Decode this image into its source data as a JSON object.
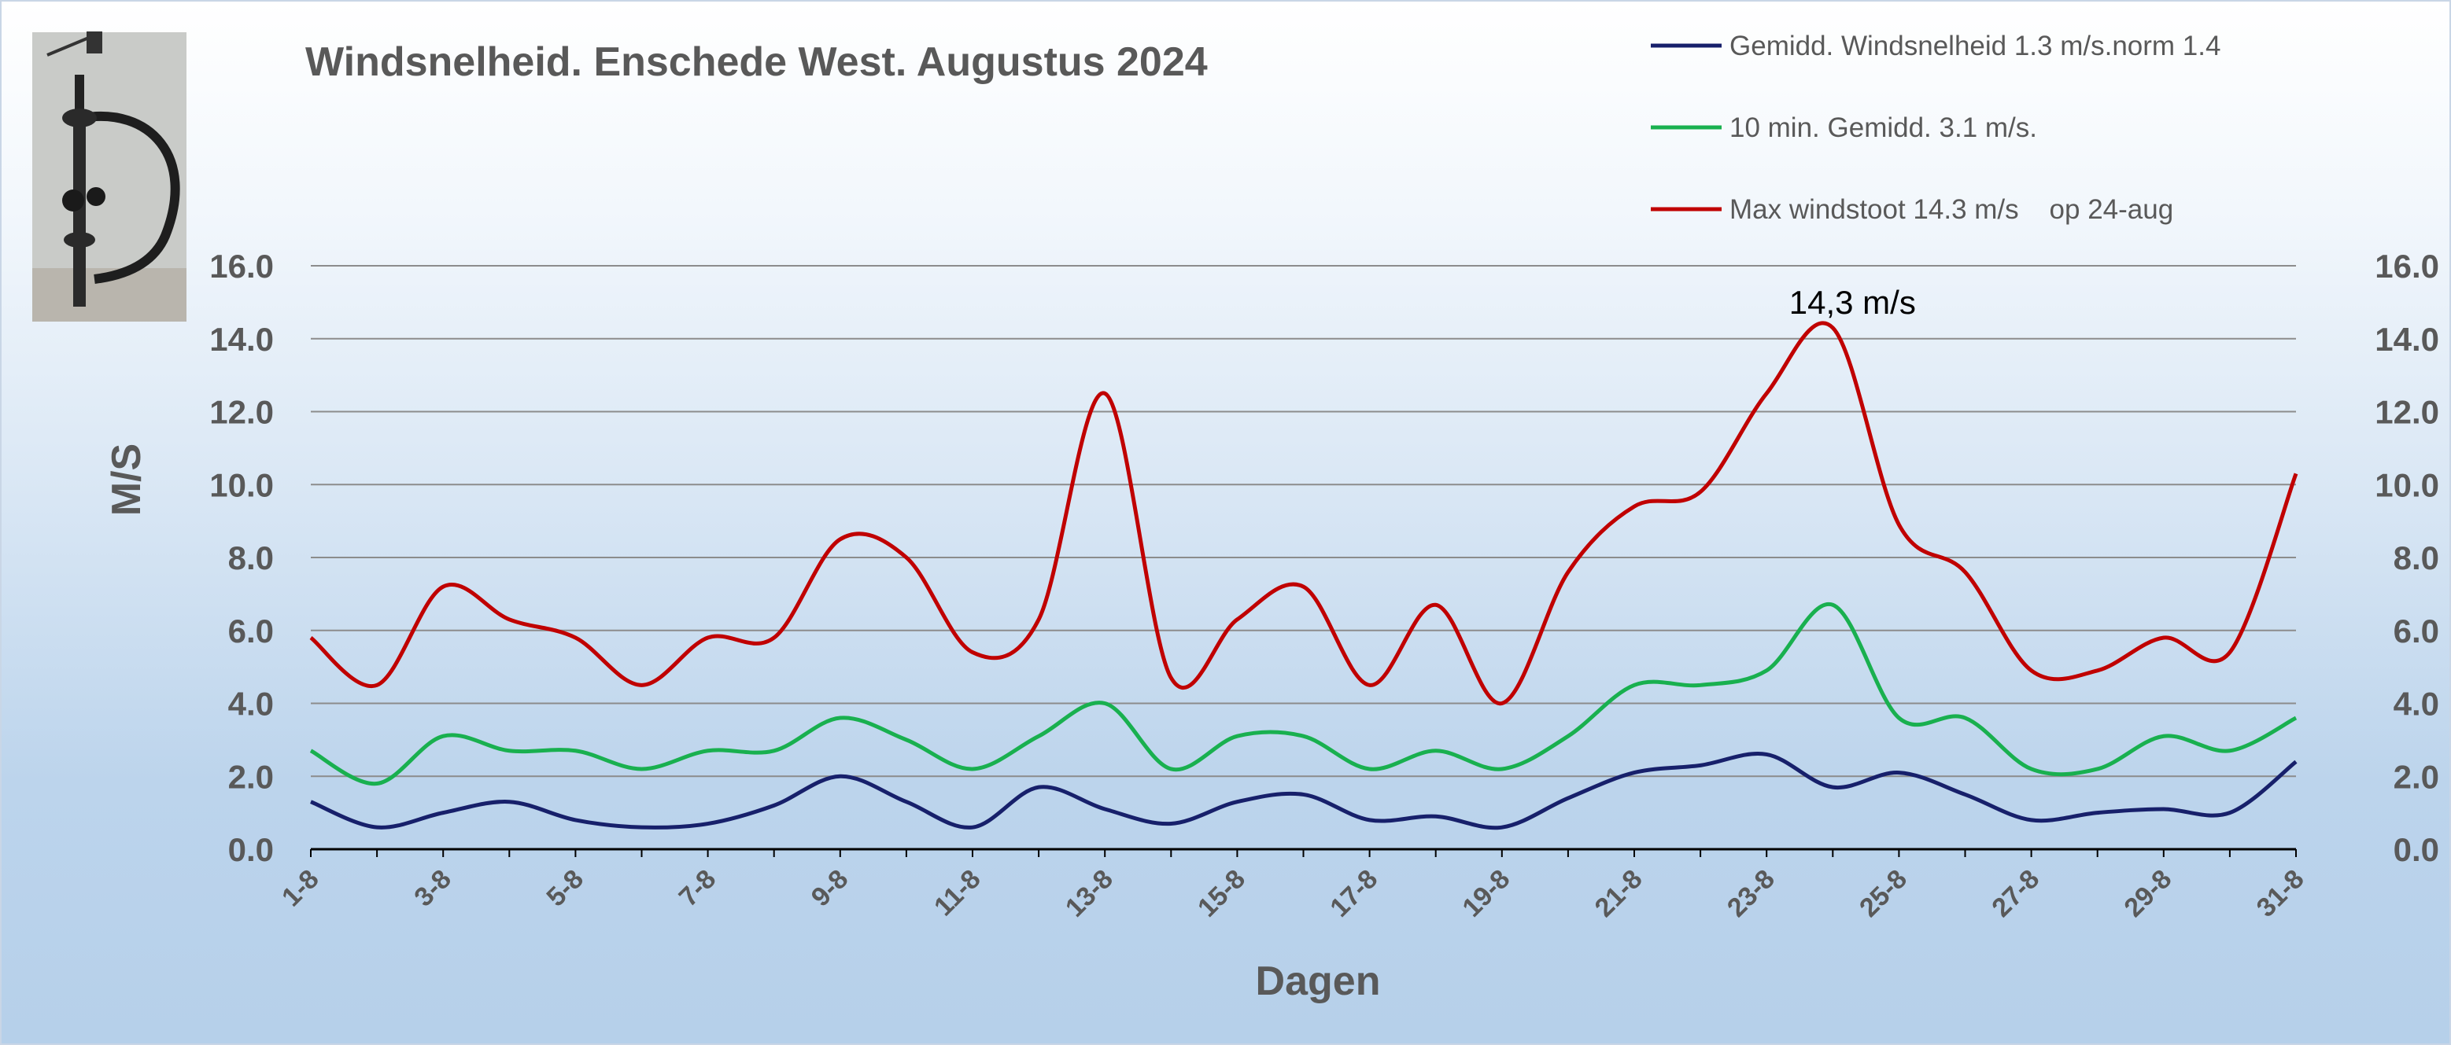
{
  "chart_data": {
    "type": "line",
    "title": "Windsnelheid. Enschede West. Augustus 2024",
    "xlabel": "Dagen",
    "ylabel": "M/S",
    "ylim": [
      0,
      16
    ],
    "yticks": [
      "0.0",
      "2.0",
      "4.0",
      "6.0",
      "8.0",
      "10.0",
      "12.0",
      "14.0",
      "16.0"
    ],
    "grid": true,
    "legend_position": "top-right",
    "categories": [
      "1-8",
      "2-8",
      "3-8",
      "4-8",
      "5-8",
      "6-8",
      "7-8",
      "8-8",
      "9-8",
      "10-8",
      "11-8",
      "12-8",
      "13-8",
      "14-8",
      "15-8",
      "16-8",
      "17-8",
      "18-8",
      "19-8",
      "20-8",
      "21-8",
      "22-8",
      "23-8",
      "24-8",
      "25-8",
      "26-8",
      "27-8",
      "28-8",
      "29-8",
      "30-8",
      "31-8"
    ],
    "tick_labels": [
      "1-8",
      "3-8",
      "5-8",
      "7-8",
      "9-8",
      "11-8",
      "13-8",
      "15-8",
      "17-8",
      "19-8",
      "21-8",
      "23-8",
      "25-8",
      "27-8",
      "29-8",
      "31-8"
    ],
    "series": [
      {
        "name": "Gemidd. Windsnelheid 1.3 m/s.norm 1.4",
        "color": "#17206b",
        "values": [
          1.3,
          0.6,
          1.0,
          1.3,
          0.8,
          0.6,
          0.7,
          1.2,
          2.0,
          1.3,
          0.6,
          1.7,
          1.1,
          0.7,
          1.3,
          1.5,
          0.8,
          0.9,
          0.6,
          1.4,
          2.1,
          2.3,
          2.6,
          1.7,
          2.1,
          1.5,
          0.8,
          1.0,
          1.1,
          1.0,
          2.4
        ]
      },
      {
        "name": "10 min. Gemidd. 3.1 m/s.",
        "color": "#19b04f",
        "values": [
          2.7,
          1.8,
          3.1,
          2.7,
          2.7,
          2.2,
          2.7,
          2.7,
          3.6,
          3.0,
          2.2,
          3.1,
          4.0,
          2.2,
          3.1,
          3.1,
          2.2,
          2.7,
          2.2,
          3.1,
          4.5,
          4.5,
          4.9,
          6.7,
          3.6,
          3.6,
          2.2,
          2.2,
          3.1,
          2.7,
          3.6
        ]
      },
      {
        "name": "Max windstoot 14.3 m/s    op 24-aug",
        "color": "#c00000",
        "values": [
          5.8,
          4.5,
          7.2,
          6.3,
          5.8,
          4.5,
          5.8,
          5.8,
          8.5,
          8.0,
          5.4,
          6.3,
          12.5,
          4.7,
          6.3,
          7.2,
          4.5,
          6.7,
          4.0,
          7.6,
          9.4,
          9.8,
          12.5,
          14.3,
          8.9,
          7.6,
          4.9,
          4.9,
          5.8,
          5.4,
          10.3
        ]
      }
    ],
    "annotations": [
      {
        "text": "14,3 m/s",
        "category": "24-8",
        "series": "Max windstoot 14.3 m/s    op 24-aug"
      }
    ]
  }
}
